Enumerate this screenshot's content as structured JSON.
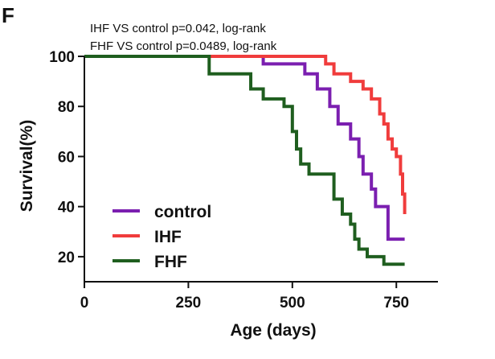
{
  "panel_label": "F",
  "colors": {
    "control": "#7b1fb0",
    "IHF": "#f03c3c",
    "FHF": "#1f5e1f",
    "axis": "#111111"
  },
  "chart_data": {
    "type": "line",
    "step": true,
    "annotations": [
      "IHF VS control p=0.042, log-rank",
      "FHF VS control p=0.0489, log-rank"
    ],
    "xlabel": "Age (days)",
    "ylabel": "Survival(%)",
    "xlim": [
      0,
      850
    ],
    "ylim": [
      10,
      100
    ],
    "xticks": [
      0,
      250,
      500,
      750
    ],
    "yticks": [
      20,
      40,
      60,
      80,
      100
    ],
    "legend_position": "bottom-left",
    "series": [
      {
        "name": "control",
        "x": [
          0,
          420,
          430,
          490,
          530,
          560,
          590,
          610,
          640,
          660,
          670,
          690,
          700,
          730,
          770
        ],
        "y": [
          100,
          100,
          97,
          97,
          93,
          87,
          80,
          73,
          67,
          60,
          53,
          47,
          40,
          27,
          27
        ]
      },
      {
        "name": "IHF",
        "x": [
          0,
          570,
          580,
          600,
          640,
          670,
          690,
          710,
          720,
          730,
          740,
          750,
          760,
          765,
          770
        ],
        "y": [
          100,
          100,
          97,
          93,
          90,
          87,
          83,
          77,
          73,
          67,
          63,
          60,
          53,
          45,
          37
        ]
      },
      {
        "name": "FHF",
        "x": [
          0,
          280,
          300,
          400,
          430,
          480,
          500,
          510,
          520,
          540,
          550,
          600,
          620,
          640,
          650,
          660,
          680,
          720,
          770
        ],
        "y": [
          100,
          100,
          93,
          87,
          83,
          80,
          70,
          63,
          57,
          53,
          53,
          43,
          37,
          33,
          27,
          23,
          20,
          17,
          17
        ]
      }
    ]
  }
}
